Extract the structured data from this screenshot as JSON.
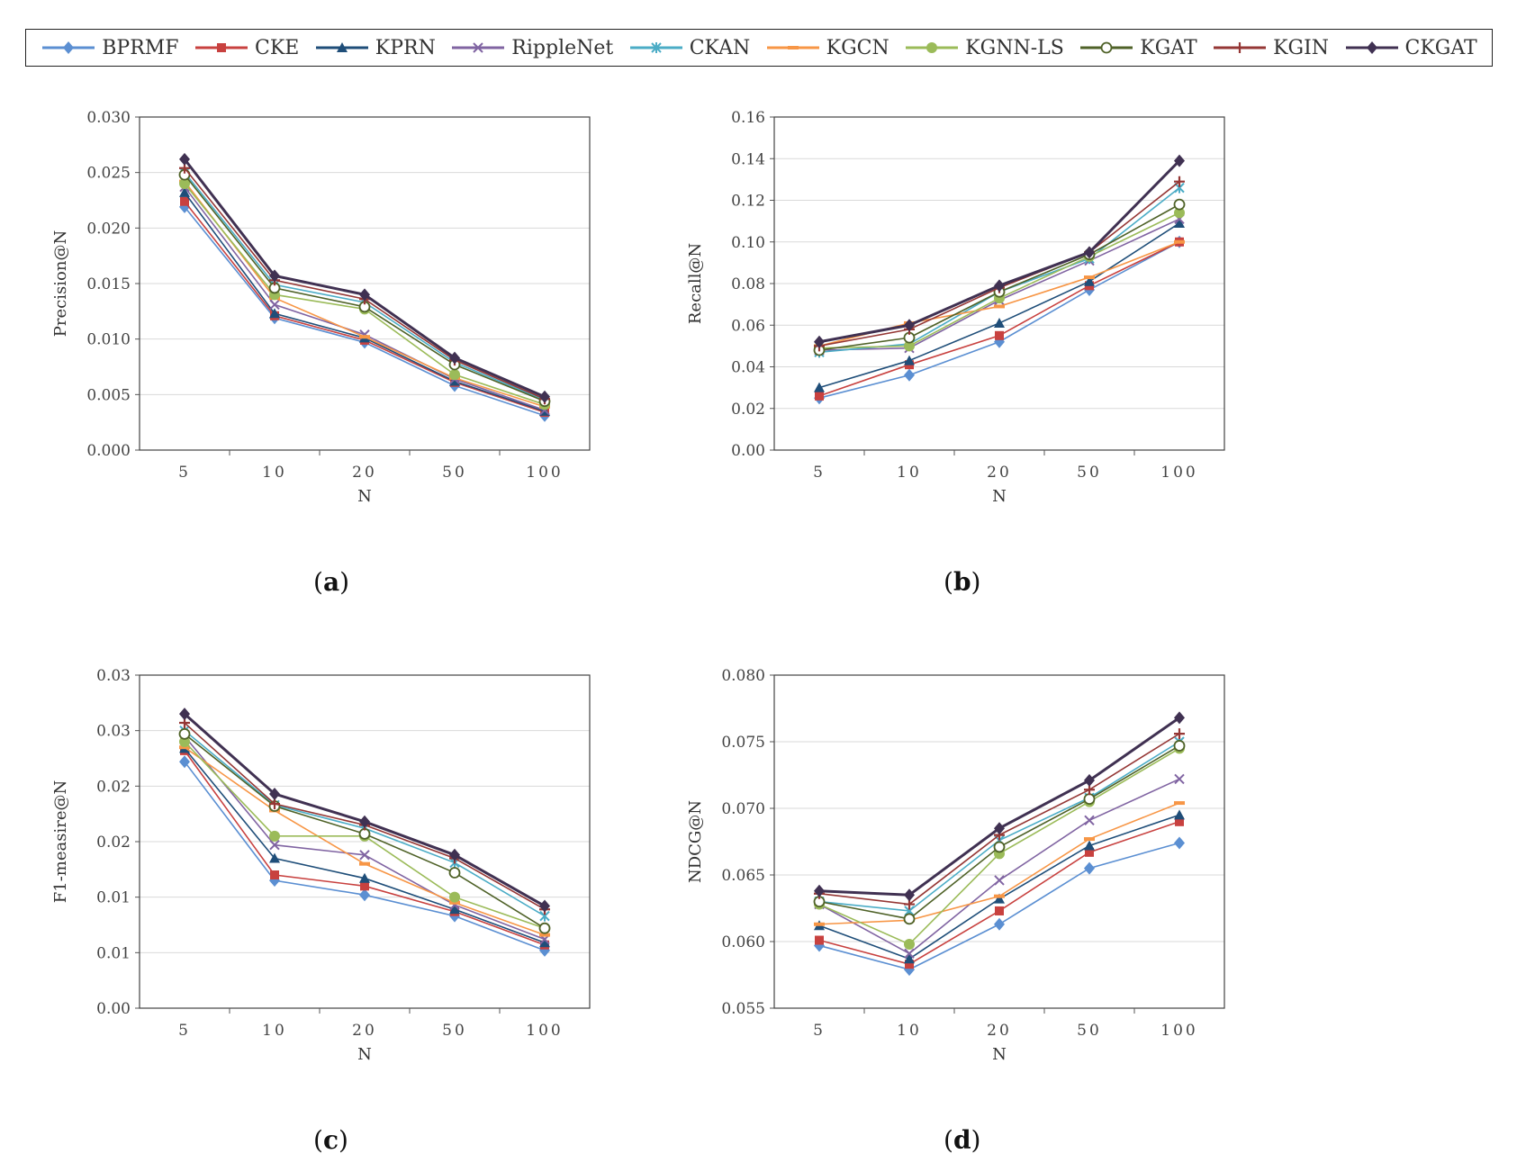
{
  "legend": {
    "series": [
      {
        "name": "BPRMF",
        "color": "#5b8fd2",
        "marker": "diamond"
      },
      {
        "name": "CKE",
        "color": "#c8413f",
        "marker": "square"
      },
      {
        "name": "KPRN",
        "color": "#1f4e79",
        "marker": "triangle"
      },
      {
        "name": "RippleNet",
        "color": "#8064a2",
        "marker": "x"
      },
      {
        "name": "CKAN",
        "color": "#4bacc6",
        "marker": "star"
      },
      {
        "name": "KGCN",
        "color": "#f79646",
        "marker": "dash"
      },
      {
        "name": "KGNN-LS",
        "color": "#9bbb59",
        "marker": "circle"
      },
      {
        "name": "KGAT",
        "color": "#4f6228",
        "marker": "circle-open"
      },
      {
        "name": "KGIN",
        "color": "#953735",
        "marker": "plus"
      },
      {
        "name": "CKGAT",
        "color": "#403152",
        "marker": "diamond"
      }
    ]
  },
  "chart_data": [
    {
      "type": "line",
      "panel_label": "a",
      "xlabel": "N",
      "ylabel": "Precision@N",
      "categories": [
        "5",
        "10",
        "20",
        "50",
        "100"
      ],
      "ylim": [
        0,
        0.03
      ],
      "yticks": [
        "0.000",
        "0.005",
        "0.010",
        "0.015",
        "0.020",
        "0.025",
        "0.030"
      ],
      "series": [
        {
          "name": "BPRMF",
          "values": [
            0.0219,
            0.0119,
            0.0097,
            0.0058,
            0.0031
          ]
        },
        {
          "name": "CKE",
          "values": [
            0.0224,
            0.0121,
            0.0099,
            0.0061,
            0.0034
          ]
        },
        {
          "name": "KPRN",
          "values": [
            0.0232,
            0.0123,
            0.0101,
            0.0062,
            0.0035
          ]
        },
        {
          "name": "RippleNet",
          "values": [
            0.0237,
            0.0131,
            0.0104,
            0.0064,
            0.0036
          ]
        },
        {
          "name": "CKAN",
          "values": [
            0.025,
            0.0149,
            0.0133,
            0.0079,
            0.0045
          ]
        },
        {
          "name": "KGCN",
          "values": [
            0.0242,
            0.0137,
            0.0102,
            0.0065,
            0.0039
          ]
        },
        {
          "name": "KGNN-LS",
          "values": [
            0.024,
            0.014,
            0.0127,
            0.0068,
            0.0041
          ]
        },
        {
          "name": "KGAT",
          "values": [
            0.0248,
            0.0146,
            0.0129,
            0.0077,
            0.0044
          ]
        },
        {
          "name": "KGIN",
          "values": [
            0.0254,
            0.0153,
            0.0136,
            0.0081,
            0.0046
          ]
        },
        {
          "name": "CKGAT",
          "values": [
            0.0262,
            0.0157,
            0.014,
            0.0083,
            0.0048
          ]
        }
      ]
    },
    {
      "type": "line",
      "panel_label": "b",
      "xlabel": "N",
      "ylabel": "Recall@N",
      "categories": [
        "5",
        "10",
        "20",
        "50",
        "100"
      ],
      "ylim": [
        0,
        0.16
      ],
      "yticks": [
        "0.00",
        "0.02",
        "0.04",
        "0.06",
        "0.08",
        "0.10",
        "0.12",
        "0.14",
        "0.16"
      ],
      "series": [
        {
          "name": "BPRMF",
          "values": [
            0.025,
            0.036,
            0.052,
            0.077,
            0.1
          ]
        },
        {
          "name": "CKE",
          "values": [
            0.026,
            0.041,
            0.055,
            0.079,
            0.1
          ]
        },
        {
          "name": "KPRN",
          "values": [
            0.03,
            0.043,
            0.061,
            0.081,
            0.109
          ]
        },
        {
          "name": "RippleNet",
          "values": [
            0.048,
            0.049,
            0.072,
            0.091,
            0.111
          ]
        },
        {
          "name": "CKAN",
          "values": [
            0.047,
            0.051,
            0.076,
            0.092,
            0.126
          ]
        },
        {
          "name": "KGCN",
          "values": [
            0.05,
            0.061,
            0.069,
            0.083,
            0.1
          ]
        },
        {
          "name": "KGNN-LS",
          "values": [
            0.049,
            0.05,
            0.073,
            0.093,
            0.114
          ]
        },
        {
          "name": "KGAT",
          "values": [
            0.048,
            0.054,
            0.076,
            0.094,
            0.118
          ]
        },
        {
          "name": "KGIN",
          "values": [
            0.05,
            0.058,
            0.078,
            0.095,
            0.129
          ]
        },
        {
          "name": "CKGAT",
          "values": [
            0.052,
            0.06,
            0.079,
            0.095,
            0.139
          ]
        }
      ]
    },
    {
      "type": "line",
      "panel_label": "c",
      "xlabel": "N",
      "ylabel": "F1-measire@N",
      "categories": [
        "5",
        "10",
        "20",
        "50",
        "100"
      ],
      "ylim": [
        0,
        0.03
      ],
      "yticks": [
        "0.00",
        "0.01",
        "0.01",
        "0.02",
        "0.02",
        "0.03",
        "0.03"
      ],
      "series": [
        {
          "name": "BPRMF",
          "values": [
            0.0222,
            0.0115,
            0.0102,
            0.0083,
            0.0052
          ]
        },
        {
          "name": "CKE",
          "values": [
            0.0232,
            0.012,
            0.011,
            0.0087,
            0.0057
          ]
        },
        {
          "name": "KPRN",
          "values": [
            0.0234,
            0.0135,
            0.0117,
            0.0089,
            0.0059
          ]
        },
        {
          "name": "RippleNet",
          "values": [
            0.0245,
            0.0147,
            0.0138,
            0.0093,
            0.0062
          ]
        },
        {
          "name": "CKAN",
          "values": [
            0.025,
            0.0183,
            0.0162,
            0.0131,
            0.0083
          ]
        },
        {
          "name": "KGCN",
          "values": [
            0.0235,
            0.0178,
            0.013,
            0.0095,
            0.0066
          ]
        },
        {
          "name": "KGNN-LS",
          "values": [
            0.024,
            0.0155,
            0.0155,
            0.01,
            0.0072
          ]
        },
        {
          "name": "KGAT",
          "values": [
            0.0247,
            0.0182,
            0.0157,
            0.0122,
            0.0072
          ]
        },
        {
          "name": "KGIN",
          "values": [
            0.0257,
            0.0184,
            0.0165,
            0.0135,
            0.0089
          ]
        },
        {
          "name": "CKGAT",
          "values": [
            0.0265,
            0.0193,
            0.0168,
            0.0138,
            0.0092
          ]
        }
      ]
    },
    {
      "type": "line",
      "panel_label": "d",
      "xlabel": "N",
      "ylabel": "NDCG@N",
      "categories": [
        "5",
        "10",
        "20",
        "50",
        "100"
      ],
      "ylim": [
        0.055,
        0.08
      ],
      "yticks": [
        "0.055",
        "0.060",
        "0.065",
        "0.070",
        "0.075",
        "0.080"
      ],
      "series": [
        {
          "name": "BPRMF",
          "values": [
            0.0597,
            0.0579,
            0.0613,
            0.0655,
            0.0674
          ]
        },
        {
          "name": "CKE",
          "values": [
            0.0601,
            0.0583,
            0.0623,
            0.0667,
            0.069
          ]
        },
        {
          "name": "KPRN",
          "values": [
            0.0612,
            0.0587,
            0.0632,
            0.0672,
            0.0695
          ]
        },
        {
          "name": "RippleNet",
          "values": [
            0.0628,
            0.0591,
            0.0646,
            0.0691,
            0.0722
          ]
        },
        {
          "name": "CKAN",
          "values": [
            0.063,
            0.0623,
            0.0676,
            0.0708,
            0.075
          ]
        },
        {
          "name": "KGCN",
          "values": [
            0.0613,
            0.0616,
            0.0634,
            0.0677,
            0.0704
          ]
        },
        {
          "name": "KGNN-LS",
          "values": [
            0.0628,
            0.0598,
            0.0666,
            0.0705,
            0.0745
          ]
        },
        {
          "name": "KGAT",
          "values": [
            0.063,
            0.0617,
            0.0671,
            0.0707,
            0.0747
          ]
        },
        {
          "name": "KGIN",
          "values": [
            0.0636,
            0.0628,
            0.068,
            0.0714,
            0.0756
          ]
        },
        {
          "name": "CKGAT",
          "values": [
            0.0638,
            0.0635,
            0.0685,
            0.0721,
            0.0768
          ]
        }
      ]
    }
  ]
}
